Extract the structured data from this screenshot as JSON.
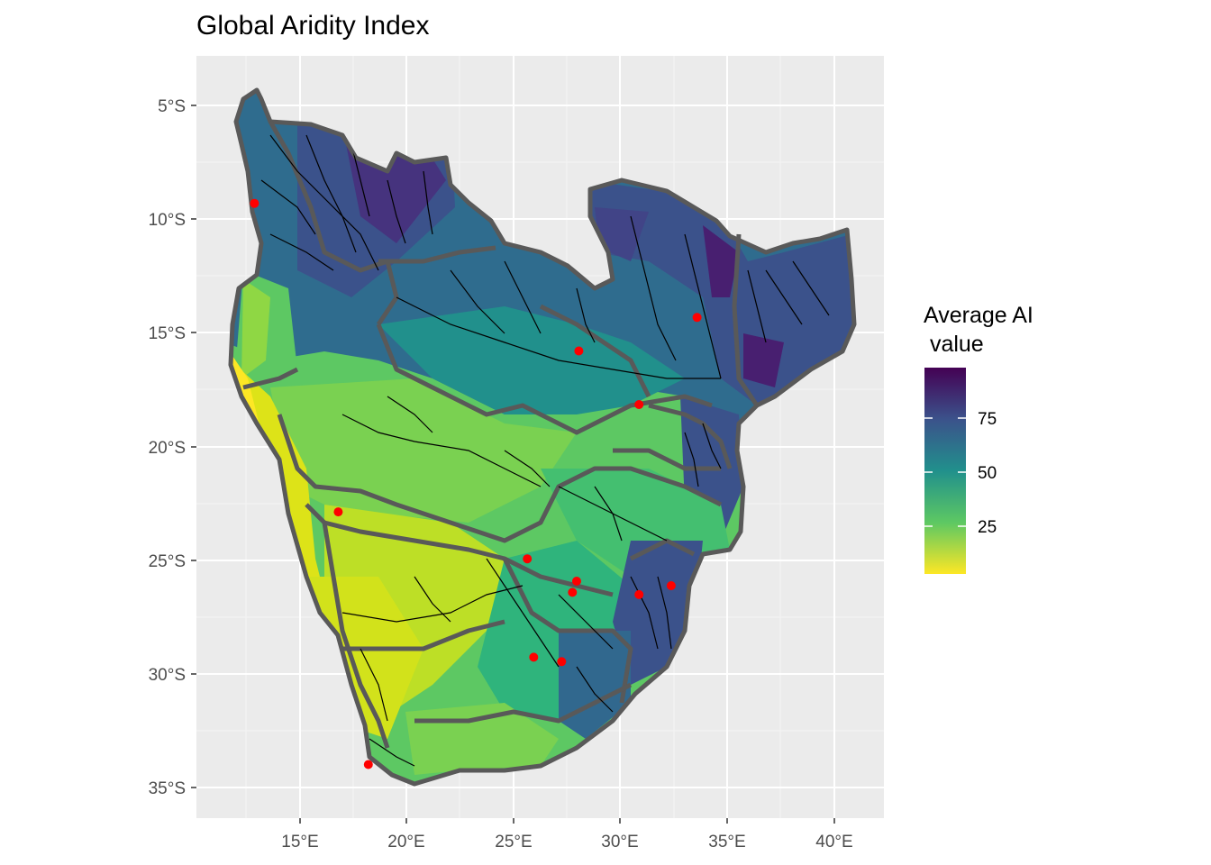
{
  "title": "Global Aridity Index",
  "axes": {
    "x_ticks": [
      "15°E",
      "20°E",
      "25°E",
      "30°E",
      "35°E",
      "40°E"
    ],
    "y_ticks": [
      "5°S",
      "10°S",
      "15°S",
      "20°S",
      "25°S",
      "30°S",
      "35°S"
    ]
  },
  "legend": {
    "title_line1": "Average AI",
    "title_line2": " value",
    "labels": [
      "75",
      "50",
      "25"
    ]
  },
  "colors": {
    "panel_bg": "#ebebeb",
    "grid": "#ffffff",
    "basin_border": "#595959",
    "river": "#000000",
    "point": "#ff0000",
    "viridis": [
      "#440154",
      "#3b528b",
      "#21908c",
      "#5dc863",
      "#fde725"
    ]
  },
  "chart_data": {
    "type": "map",
    "x_range": [
      10.5,
      42.5
    ],
    "y_range": [
      -36.3,
      -2.2
    ],
    "legend_range": [
      0,
      100
    ],
    "points": [
      {
        "lon": 13.2,
        "lat": -8.8
      },
      {
        "lon": 33.8,
        "lat": -13.9
      },
      {
        "lon": 28.3,
        "lat": -15.4
      },
      {
        "lon": 31.1,
        "lat": -17.8
      },
      {
        "lon": 17.1,
        "lat": -22.6
      },
      {
        "lon": 25.9,
        "lat": -24.7
      },
      {
        "lon": 28.2,
        "lat": -25.7
      },
      {
        "lon": 28.0,
        "lat": -26.2
      },
      {
        "lon": 31.1,
        "lat": -26.3
      },
      {
        "lon": 32.6,
        "lat": -25.9
      },
      {
        "lon": 26.2,
        "lat": -29.1
      },
      {
        "lon": 27.5,
        "lat": -29.3
      },
      {
        "lon": 18.5,
        "lat": -33.9
      }
    ]
  }
}
